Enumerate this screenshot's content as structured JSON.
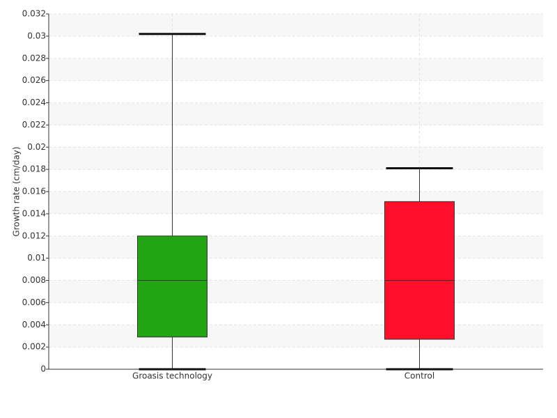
{
  "chart_data": {
    "type": "box",
    "y_label": "Growth rate (cm/day)",
    "categories": [
      "Groasis technology",
      "Control"
    ],
    "colors": [
      "#22a512",
      "#ff0f29"
    ],
    "boxes": [
      {
        "min": 0,
        "q1": 0.0029,
        "median": 0.008,
        "q3": 0.012,
        "max": 0.0302
      },
      {
        "min": 0,
        "q1": 0.0027,
        "median": 0.008,
        "q3": 0.0151,
        "max": 0.0181
      }
    ],
    "ylim": [
      0,
      0.032
    ],
    "yticks": [
      0,
      0.002,
      0.004,
      0.006,
      0.008,
      0.01,
      0.012,
      0.014,
      0.016,
      0.018,
      0.02,
      0.022,
      0.024,
      0.026,
      0.028,
      0.03,
      0.032
    ],
    "grid": true
  }
}
